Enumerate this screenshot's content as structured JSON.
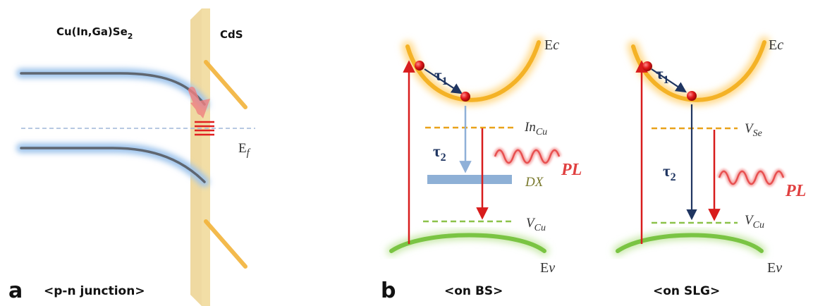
{
  "panel_a": {
    "letter": "a",
    "caption": "<p-n junction>",
    "material_left": "Cu(In,Ga)Se",
    "material_left_subscript": "2",
    "material_right": "CdS",
    "fermi_label": "E",
    "fermi_subscript": "f"
  },
  "panel_b": {
    "letter": "b",
    "diagrams": [
      {
        "caption": "<on BS>",
        "conduction_label": "E",
        "conduction_italic": "c",
        "valence_label": "E",
        "valence_italic": "v",
        "tau1_label": "τ",
        "tau1_subscript": "1",
        "tau2_label": "τ",
        "tau2_subscript": "2",
        "upper_level": "In",
        "upper_level_subscript": "Cu",
        "middle_level": "DX",
        "lower_level": "V",
        "lower_level_subscript": "Cu",
        "emission_label": "PL"
      },
      {
        "caption": "<on SLG>",
        "conduction_label": "E",
        "conduction_italic": "c",
        "valence_label": "E",
        "valence_italic": "v",
        "tau1_label": "τ",
        "tau1_subscript": "1",
        "tau2_label": "τ",
        "tau2_subscript": "2",
        "upper_level": "V",
        "upper_level_subscript": "Se",
        "lower_level": "V",
        "lower_level_subscript": "Cu",
        "emission_label": "PL"
      }
    ]
  },
  "colors": {
    "band_gray": "#5f6670",
    "band_glow": "#9fc4ec",
    "cds_slab": "#f0d896",
    "cds_band": "#f2b33a",
    "conduction": "#f4b226",
    "valence": "#7ac443",
    "electron": "#e01818",
    "arrow_red": "#d81c1c",
    "arrow_navy": "#1f3561",
    "arrow_light": "#8fb0d8",
    "pl_wave": "#e85050",
    "dx_bar": "#8eb0d6",
    "level_orange": "#e9a21a",
    "level_green": "#8cc24a"
  }
}
